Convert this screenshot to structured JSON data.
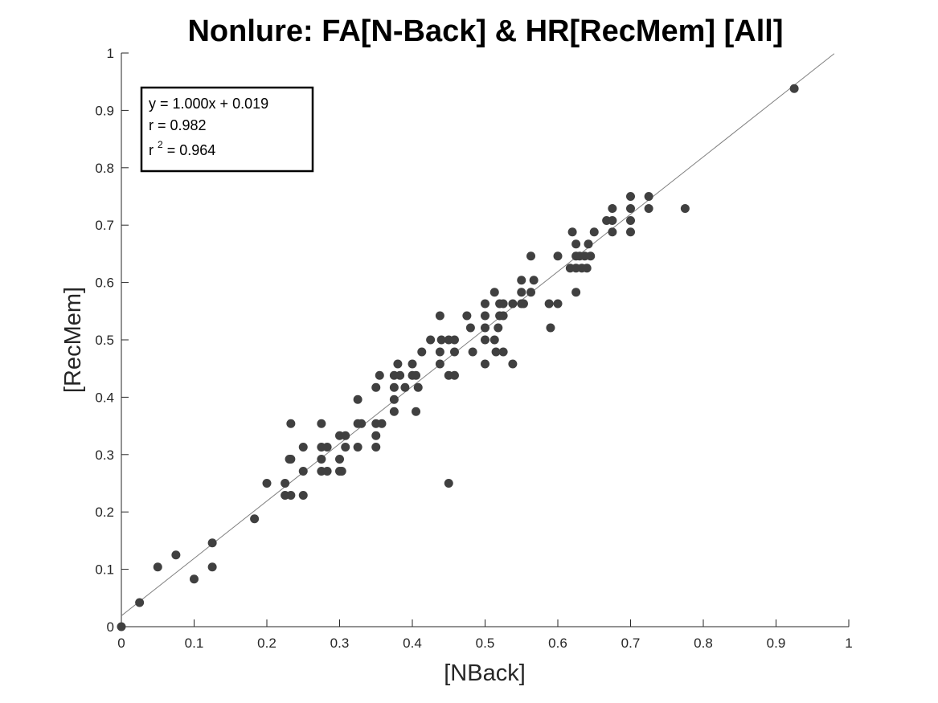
{
  "chart_data": {
    "type": "scatter",
    "title": "Nonlure: FA[N-Back] & HR[RecMem] [All]",
    "xlabel": "[NBack]",
    "ylabel": "[RecMem]",
    "xlim": [
      0,
      1
    ],
    "ylim": [
      0,
      1
    ],
    "xticks": [
      "0",
      "0.1",
      "0.2",
      "0.3",
      "0.4",
      "0.5",
      "0.6",
      "0.7",
      "0.8",
      "0.9",
      "1"
    ],
    "yticks": [
      "0",
      "0.1",
      "0.2",
      "0.3",
      "0.4",
      "0.5",
      "0.6",
      "0.7",
      "0.8",
      "0.9",
      "1"
    ],
    "grid": false,
    "marker_color": "#404040",
    "fit_line": {
      "slope": 1.0,
      "intercept": 0.019,
      "x_range": [
        0,
        0.98
      ],
      "color": "#808080"
    },
    "annotation": {
      "line1": "y = 1.000x + 0.019",
      "line2": "r = 0.982",
      "r2_prefix": "r",
      "r2_exp": "2",
      "r2_value": " = 0.964",
      "placement": "top-left"
    },
    "points": [
      [
        0,
        0
      ],
      [
        0.025,
        0.042
      ],
      [
        0.05,
        0.104
      ],
      [
        0.075,
        0.125
      ],
      [
        0.1,
        0.083
      ],
      [
        0.125,
        0.104
      ],
      [
        0.125,
        0.146
      ],
      [
        0.183,
        0.188
      ],
      [
        0.2,
        0.25
      ],
      [
        0.225,
        0.25
      ],
      [
        0.225,
        0.229
      ],
      [
        0.233,
        0.229
      ],
      [
        0.233,
        0.292
      ],
      [
        0.231,
        0.292
      ],
      [
        0.233,
        0.354
      ],
      [
        0.25,
        0.313
      ],
      [
        0.25,
        0.271
      ],
      [
        0.25,
        0.229
      ],
      [
        0.275,
        0.354
      ],
      [
        0.275,
        0.313
      ],
      [
        0.275,
        0.292
      ],
      [
        0.275,
        0.271
      ],
      [
        0.283,
        0.313
      ],
      [
        0.283,
        0.271
      ],
      [
        0.3,
        0.333
      ],
      [
        0.3,
        0.292
      ],
      [
        0.3,
        0.271
      ],
      [
        0.303,
        0.271
      ],
      [
        0.308,
        0.333
      ],
      [
        0.308,
        0.313
      ],
      [
        0.325,
        0.396
      ],
      [
        0.325,
        0.354
      ],
      [
        0.325,
        0.313
      ],
      [
        0.33,
        0.354
      ],
      [
        0.35,
        0.417
      ],
      [
        0.35,
        0.354
      ],
      [
        0.35,
        0.333
      ],
      [
        0.35,
        0.313
      ],
      [
        0.355,
        0.438
      ],
      [
        0.358,
        0.354
      ],
      [
        0.375,
        0.438
      ],
      [
        0.375,
        0.417
      ],
      [
        0.375,
        0.396
      ],
      [
        0.375,
        0.375
      ],
      [
        0.38,
        0.458
      ],
      [
        0.383,
        0.438
      ],
      [
        0.39,
        0.417
      ],
      [
        0.4,
        0.458
      ],
      [
        0.4,
        0.438
      ],
      [
        0.405,
        0.438
      ],
      [
        0.405,
        0.375
      ],
      [
        0.408,
        0.417
      ],
      [
        0.413,
        0.479
      ],
      [
        0.425,
        0.5
      ],
      [
        0.438,
        0.542
      ],
      [
        0.438,
        0.479
      ],
      [
        0.438,
        0.458
      ],
      [
        0.44,
        0.5
      ],
      [
        0.45,
        0.5
      ],
      [
        0.45,
        0.438
      ],
      [
        0.45,
        0.25
      ],
      [
        0.458,
        0.5
      ],
      [
        0.458,
        0.479
      ],
      [
        0.458,
        0.438
      ],
      [
        0.475,
        0.542
      ],
      [
        0.48,
        0.521
      ],
      [
        0.483,
        0.479
      ],
      [
        0.5,
        0.563
      ],
      [
        0.5,
        0.542
      ],
      [
        0.5,
        0.521
      ],
      [
        0.5,
        0.5
      ],
      [
        0.5,
        0.458
      ],
      [
        0.513,
        0.583
      ],
      [
        0.513,
        0.5
      ],
      [
        0.515,
        0.479
      ],
      [
        0.518,
        0.521
      ],
      [
        0.52,
        0.563
      ],
      [
        0.52,
        0.542
      ],
      [
        0.525,
        0.563
      ],
      [
        0.525,
        0.542
      ],
      [
        0.525,
        0.479
      ],
      [
        0.538,
        0.563
      ],
      [
        0.538,
        0.458
      ],
      [
        0.55,
        0.604
      ],
      [
        0.55,
        0.583
      ],
      [
        0.55,
        0.563
      ],
      [
        0.553,
        0.563
      ],
      [
        0.563,
        0.646
      ],
      [
        0.563,
        0.583
      ],
      [
        0.567,
        0.604
      ],
      [
        0.588,
        0.563
      ],
      [
        0.59,
        0.521
      ],
      [
        0.6,
        0.646
      ],
      [
        0.6,
        0.563
      ],
      [
        0.617,
        0.625
      ],
      [
        0.62,
        0.688
      ],
      [
        0.625,
        0.667
      ],
      [
        0.625,
        0.646
      ],
      [
        0.625,
        0.625
      ],
      [
        0.625,
        0.583
      ],
      [
        0.63,
        0.646
      ],
      [
        0.633,
        0.625
      ],
      [
        0.637,
        0.646
      ],
      [
        0.64,
        0.625
      ],
      [
        0.642,
        0.667
      ],
      [
        0.645,
        0.646
      ],
      [
        0.65,
        0.688
      ],
      [
        0.667,
        0.708
      ],
      [
        0.675,
        0.729
      ],
      [
        0.675,
        0.708
      ],
      [
        0.675,
        0.688
      ],
      [
        0.7,
        0.75
      ],
      [
        0.7,
        0.729
      ],
      [
        0.7,
        0.708
      ],
      [
        0.7,
        0.688
      ],
      [
        0.725,
        0.75
      ],
      [
        0.725,
        0.729
      ],
      [
        0.775,
        0.729
      ],
      [
        0.925,
        0.938
      ]
    ]
  }
}
